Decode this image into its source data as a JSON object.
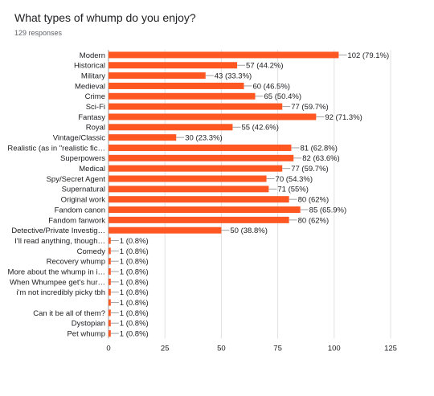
{
  "header": {
    "title": "What types of whump do you enjoy?",
    "responses": "129 responses"
  },
  "chart_data": {
    "type": "bar",
    "orientation": "horizontal",
    "title": "What types of whump do you enjoy?",
    "subtitle": "129 responses",
    "bar_color": "#ff5722",
    "xlim": [
      0,
      125
    ],
    "xticks": [
      0,
      25,
      50,
      75,
      100,
      125
    ],
    "grid": true,
    "categories": [
      "Modern",
      "Historical",
      "Military",
      "Medieval",
      "Crime",
      "Sci-Fi",
      "Fantasy",
      "Royal",
      "Vintage/Classic",
      "Realistic (as in \"realistic fic…",
      "Superpowers",
      "Medical",
      "Spy/Secret Agent",
      "Supernatural",
      "Original work",
      "Fandom canon",
      "Fandom fanwork",
      "Detective/Private Investig…",
      "I'll read anything, though…",
      "Comedy",
      "Recovery whump",
      "More about the whump in i…",
      "When Whumpee get's hur…",
      "i'm not incredibly picky tbh",
      "",
      "Can it be all of them?",
      "Dystopian",
      "Pet whump"
    ],
    "values": [
      102,
      57,
      43,
      60,
      65,
      77,
      92,
      55,
      30,
      81,
      82,
      77,
      70,
      71,
      80,
      85,
      80,
      50,
      1,
      1,
      1,
      1,
      1,
      1,
      1,
      1,
      1,
      1
    ],
    "labels": [
      "102 (79.1%)",
      "57 (44.2%)",
      "43 (33.3%)",
      "60 (46.5%)",
      "65 (50.4%)",
      "77 (59.7%)",
      "92 (71.3%)",
      "55 (42.6%)",
      "30 (23.3%)",
      "81 (62.8%)",
      "82 (63.6%)",
      "77 (59.7%)",
      "70 (54.3%)",
      "71 (55%)",
      "80 (62%)",
      "85 (65.9%)",
      "80 (62%)",
      "50 (38.8%)",
      "1 (0.8%)",
      "1 (0.8%)",
      "1 (0.8%)",
      "1 (0.8%)",
      "1 (0.8%)",
      "1 (0.8%)",
      "1 (0.8%)",
      "1 (0.8%)",
      "1 (0.8%)",
      "1 (0.8%)"
    ]
  }
}
